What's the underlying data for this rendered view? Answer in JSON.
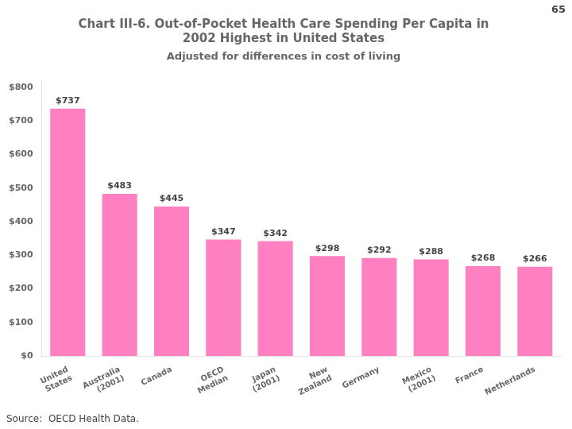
{
  "chart_data": {
    "type": "bar",
    "title": "Chart III-6. Out-of-Pocket Health Care Spending Per Capita in\n2002 Highest in United States",
    "subtitle": "Adjusted for differences in cost of living",
    "annotations": [
      "65",
      "Source:  OECD Health Data."
    ],
    "categories": [
      "United\nStates",
      "Australia\n(2001)",
      "Canada",
      "OECD\nMedian",
      "Japan\n(2001)",
      "New\nZealand",
      "Germany",
      "Mexico\n(2001)",
      "France",
      "Netherlands"
    ],
    "values": [
      737,
      483,
      445,
      347,
      342,
      298,
      292,
      288,
      268,
      266
    ],
    "value_labels": [
      "$737",
      "$483",
      "$445",
      "$347",
      "$342",
      "$298",
      "$292",
      "$288",
      "$268",
      "$266"
    ],
    "data_labels": true,
    "color": "#FF80C0",
    "ylim": [
      0,
      820
    ],
    "yticks": [
      {
        "value": 0,
        "label": "$0"
      },
      {
        "value": 100,
        "label": "$100"
      },
      {
        "value": 200,
        "label": "$200"
      },
      {
        "value": 300,
        "label": "$300"
      },
      {
        "value": 400,
        "label": "$400"
      },
      {
        "value": 500,
        "label": "$500"
      },
      {
        "value": 600,
        "label": "$600"
      },
      {
        "value": 700,
        "label": "$700"
      },
      {
        "value": 800,
        "label": "$800"
      }
    ],
    "grid": false
  }
}
